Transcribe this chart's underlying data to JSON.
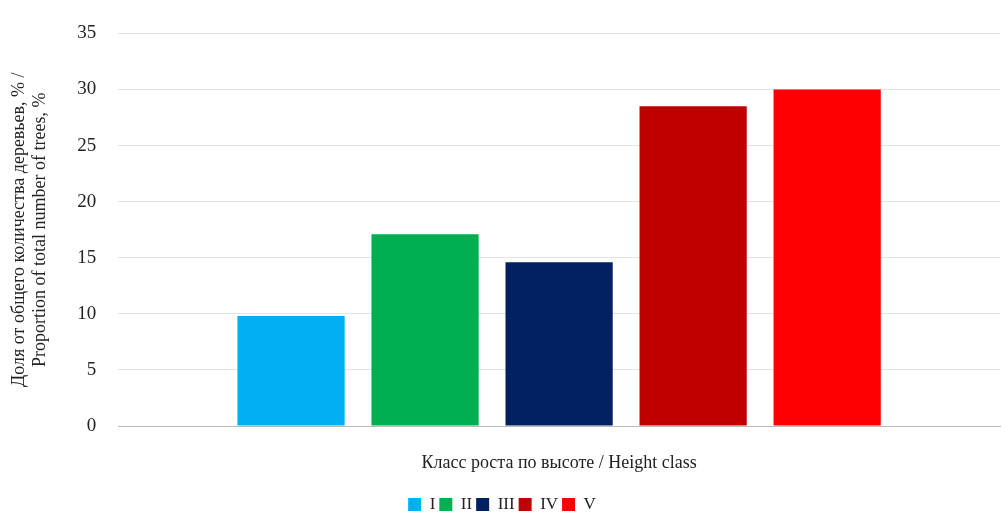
{
  "chart_data": {
    "type": "bar",
    "xlabel": "Класс роста по высоте / Height class",
    "ylabel": "Доля от общего количества деревьев, % / Proportion of total number of trees, %",
    "categories": [
      null
    ],
    "series": [
      {
        "name": "I",
        "color": "#00b0f0",
        "values": [
          9.8
        ]
      },
      {
        "name": "II",
        "color": "#00b050",
        "values": [
          17.1
        ]
      },
      {
        "name": "III",
        "color": "#002060",
        "values": [
          14.6
        ]
      },
      {
        "name": "IV",
        "color": "#c00000",
        "values": [
          28.5
        ]
      },
      {
        "name": "V",
        "color": "#ff0000",
        "values": [
          30.0
        ]
      }
    ],
    "ylim": [
      0,
      35
    ],
    "yticks": [
      0,
      5,
      10,
      15,
      20,
      25,
      30,
      35
    ],
    "grid": "y",
    "legend": "bottom"
  }
}
